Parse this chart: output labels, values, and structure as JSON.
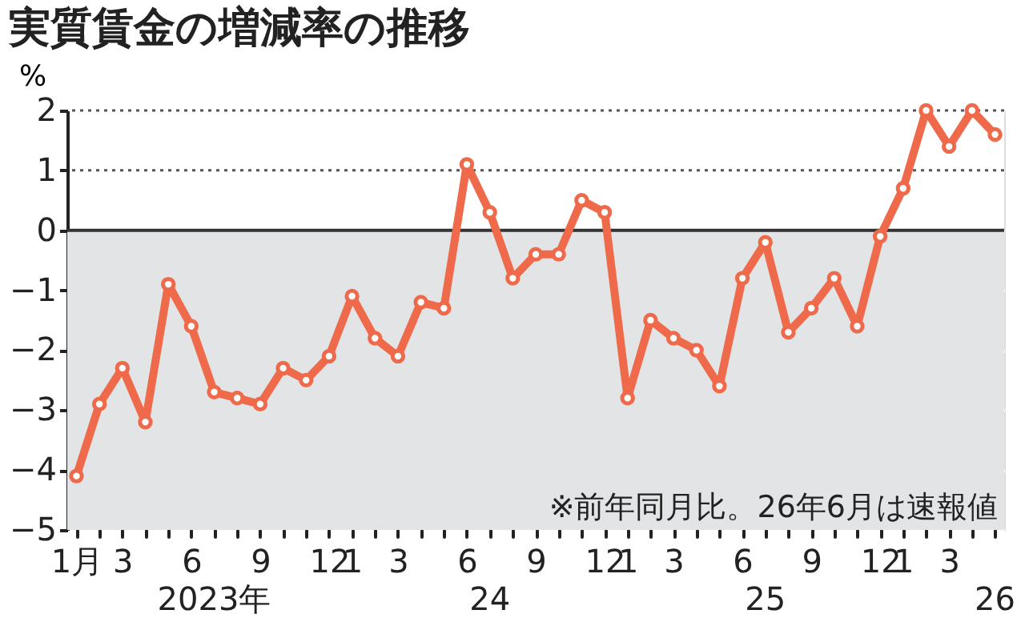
{
  "chart_data": {
    "type": "line",
    "title": "実質賃金の増減率の推移",
    "ylabel": "%",
    "categories": [
      "1月",
      null,
      "3",
      null,
      null,
      "6",
      null,
      null,
      "9",
      null,
      null,
      "12",
      "1",
      null,
      "3",
      null,
      null,
      "6",
      null,
      null,
      "9",
      null,
      null,
      "12",
      "1",
      null,
      "3",
      null,
      null,
      "6",
      null,
      null,
      "9",
      null,
      null,
      "12",
      "1",
      null,
      "3",
      null,
      null
    ],
    "series": [
      {
        "color": "#ee6a4a",
        "values": [
          -4.1,
          -2.9,
          -2.3,
          -3.2,
          -0.9,
          -1.6,
          -2.7,
          -2.8,
          -2.9,
          -2.3,
          -2.5,
          -2.1,
          -1.1,
          -1.8,
          -2.1,
          -1.2,
          -1.3,
          1.1,
          0.3,
          -0.8,
          -0.4,
          -0.4,
          0.5,
          0.3,
          -2.8,
          -1.5,
          -1.8,
          -2.0,
          -2.6,
          -0.8,
          -0.2,
          -1.7,
          -1.3,
          -0.8,
          -1.6,
          -0.1,
          0.7,
          2.0,
          1.4,
          2.0,
          1.6
        ]
      }
    ],
    "ylim": [
      -5,
      2
    ],
    "yticks": [
      -5,
      -4,
      -3,
      -2,
      -1,
      0,
      1,
      2
    ],
    "grid": "y",
    "marker": "circle",
    "line_style": "solid",
    "bands": [
      {
        "axis": "y",
        "from": -5,
        "to": 0,
        "color": "#e3e4e6"
      }
    ],
    "ref_lines": [
      {
        "axis": "y",
        "value": 0,
        "color": "#333333",
        "line_style": "solid"
      },
      {
        "axis": "y",
        "value": 1,
        "color": "#555555",
        "line_style": "dotted"
      },
      {
        "axis": "y",
        "value": 2,
        "color": "#555555",
        "line_style": "dotted"
      }
    ],
    "annotations": [
      "※前年同月比。26年6月は速報値",
      "2023年",
      "24",
      "25",
      "26"
    ]
  }
}
